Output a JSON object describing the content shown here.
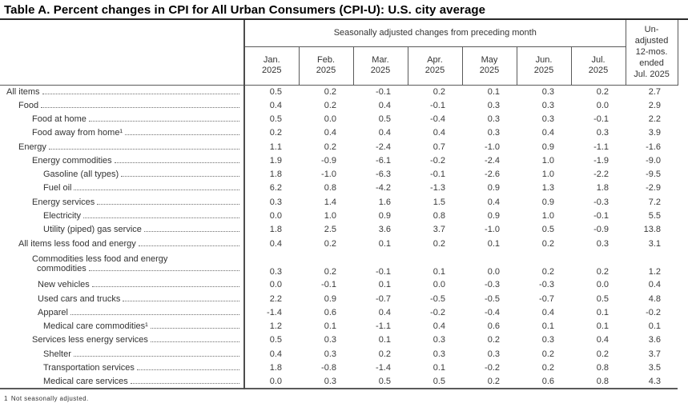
{
  "title": "Table A. Percent changes in CPI for All Urban Consumers (CPI-U): U.S. city average",
  "colors": {
    "text": "#333333",
    "border": "#5a5a5a",
    "title": "#000000"
  },
  "table": {
    "spanner": "Seasonally adjusted changes from preceding month",
    "month_columns": [
      {
        "label": "Jan.",
        "year": "2025"
      },
      {
        "label": "Feb.",
        "year": "2025"
      },
      {
        "label": "Mar.",
        "year": "2025"
      },
      {
        "label": "Apr.",
        "year": "2025"
      },
      {
        "label": "May",
        "year": "2025"
      },
      {
        "label": "Jun.",
        "year": "2025"
      },
      {
        "label": "Jul.",
        "year": "2025"
      }
    ],
    "unadjusted_header_lines": [
      "Un-",
      "adjusted",
      "12-mos.",
      "ended",
      "Jul. 2025"
    ],
    "rows": [
      {
        "label": "All items",
        "indent": 0,
        "values": [
          "0.5",
          "0.2",
          "-0.1",
          "0.2",
          "0.1",
          "0.3",
          "0.2",
          "2.7"
        ]
      },
      {
        "label": "Food",
        "indent": 1,
        "values": [
          "0.4",
          "0.2",
          "0.4",
          "-0.1",
          "0.3",
          "0.3",
          "0.0",
          "2.9"
        ]
      },
      {
        "label": "Food at home",
        "indent": 2,
        "values": [
          "0.5",
          "0.0",
          "0.5",
          "-0.4",
          "0.3",
          "0.3",
          "-0.1",
          "2.2"
        ]
      },
      {
        "label": "Food away from home¹",
        "indent": 2,
        "values": [
          "0.2",
          "0.4",
          "0.4",
          "0.4",
          "0.3",
          "0.4",
          "0.3",
          "3.9"
        ]
      },
      {
        "label": "Energy",
        "indent": 1,
        "values": [
          "1.1",
          "0.2",
          "-2.4",
          "0.7",
          "-1.0",
          "0.9",
          "-1.1",
          "-1.6"
        ]
      },
      {
        "label": "Energy commodities",
        "indent": 2,
        "values": [
          "1.9",
          "-0.9",
          "-6.1",
          "-0.2",
          "-2.4",
          "1.0",
          "-1.9",
          "-9.0"
        ]
      },
      {
        "label": "Gasoline (all types)",
        "indent": 4,
        "values": [
          "1.8",
          "-1.0",
          "-6.3",
          "-0.1",
          "-2.6",
          "1.0",
          "-2.2",
          "-9.5"
        ]
      },
      {
        "label": "Fuel oil",
        "indent": 4,
        "values": [
          "6.2",
          "0.8",
          "-4.2",
          "-1.3",
          "0.9",
          "1.3",
          "1.8",
          "-2.9"
        ]
      },
      {
        "label": "Energy services",
        "indent": 2,
        "values": [
          "0.3",
          "1.4",
          "1.6",
          "1.5",
          "0.4",
          "0.9",
          "-0.3",
          "7.2"
        ]
      },
      {
        "label": "Electricity",
        "indent": 4,
        "values": [
          "0.0",
          "1.0",
          "0.9",
          "0.8",
          "0.9",
          "1.0",
          "-0.1",
          "5.5"
        ]
      },
      {
        "label": "Utility (piped) gas service",
        "indent": 4,
        "values": [
          "1.8",
          "2.5",
          "3.6",
          "3.7",
          "-1.0",
          "0.5",
          "-0.9",
          "13.8"
        ]
      },
      {
        "label": "All items less food and energy",
        "indent": 1,
        "values": [
          "0.4",
          "0.2",
          "0.1",
          "0.2",
          "0.1",
          "0.2",
          "0.3",
          "3.1"
        ]
      },
      {
        "label": "Commodities less food and energy",
        "label2": "commodities",
        "indent": 2,
        "values": [
          "0.3",
          "0.2",
          "-0.1",
          "0.1",
          "0.0",
          "0.2",
          "0.2",
          "1.2"
        ]
      },
      {
        "label": "New vehicles",
        "indent": 3,
        "values": [
          "0.0",
          "-0.1",
          "0.1",
          "0.0",
          "-0.3",
          "-0.3",
          "0.0",
          "0.4"
        ]
      },
      {
        "label": "Used cars and trucks",
        "indent": 3,
        "values": [
          "2.2",
          "0.9",
          "-0.7",
          "-0.5",
          "-0.5",
          "-0.7",
          "0.5",
          "4.8"
        ]
      },
      {
        "label": "Apparel",
        "indent": 3,
        "values": [
          "-1.4",
          "0.6",
          "0.4",
          "-0.2",
          "-0.4",
          "0.4",
          "0.1",
          "-0.2"
        ]
      },
      {
        "label": "Medical care commodities¹",
        "indent": 4,
        "values": [
          "1.2",
          "0.1",
          "-1.1",
          "0.4",
          "0.6",
          "0.1",
          "0.1",
          "0.1"
        ]
      },
      {
        "label": "Services less energy services",
        "indent": 2,
        "values": [
          "0.5",
          "0.3",
          "0.1",
          "0.3",
          "0.2",
          "0.3",
          "0.4",
          "3.6"
        ]
      },
      {
        "label": "Shelter",
        "indent": 4,
        "values": [
          "0.4",
          "0.3",
          "0.2",
          "0.3",
          "0.3",
          "0.2",
          "0.2",
          "3.7"
        ]
      },
      {
        "label": "Transportation services",
        "indent": 4,
        "values": [
          "1.8",
          "-0.8",
          "-1.4",
          "0.1",
          "-0.2",
          "0.2",
          "0.8",
          "3.5"
        ]
      },
      {
        "label": "Medical care services",
        "indent": 4,
        "values": [
          "0.0",
          "0.3",
          "0.5",
          "0.5",
          "0.2",
          "0.6",
          "0.8",
          "4.3"
        ]
      }
    ]
  },
  "footnote": {
    "marker": "1",
    "text": "Not seasonally adjusted."
  }
}
